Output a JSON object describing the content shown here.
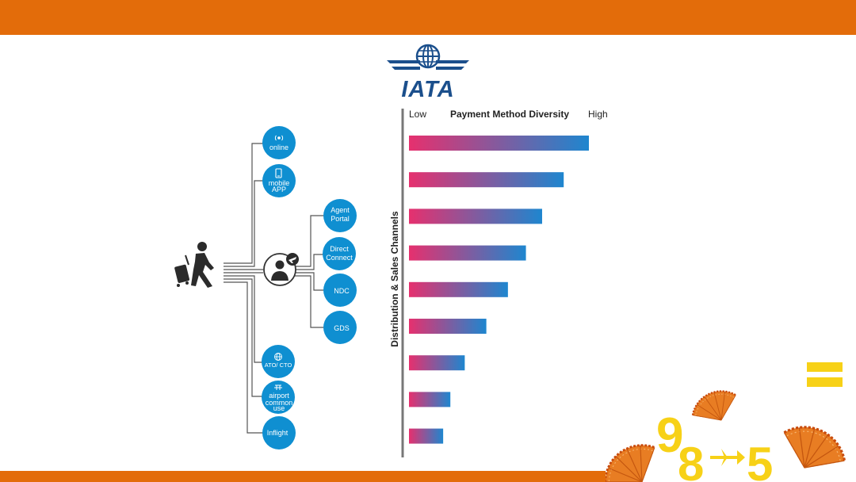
{
  "logo": {
    "text": "IATA",
    "icon": "globe-wings-icon",
    "color": "#1b4f8c"
  },
  "colors": {
    "accent": "#e36c0a",
    "bubble": "#0f8fd1",
    "bar_start": "#e6306e",
    "bar_end": "#1e86cf",
    "yellow": "#f7d117"
  },
  "channels": {
    "direct": [
      {
        "label": [
          "online"
        ],
        "icon": "broadcast-icon"
      },
      {
        "label": [
          "mobile",
          "APP"
        ],
        "icon": "phone-icon"
      }
    ],
    "agent_icon": "agent-plane-icon",
    "traveller_icon": "traveller-luggage-icon",
    "indirect": [
      {
        "label": [
          "Agent",
          "Portal"
        ]
      },
      {
        "label": [
          "Direct",
          "Connect"
        ]
      },
      {
        "label": [
          "NDC"
        ]
      },
      {
        "label": [
          "GDS"
        ]
      }
    ],
    "other": [
      {
        "label": [
          "ATO/ CTO"
        ],
        "icon": "globe-icon"
      },
      {
        "label": [
          "airport",
          "common",
          "use"
        ],
        "icon": "airport-icon"
      },
      {
        "label": [
          "Inflight"
        ]
      }
    ]
  },
  "chart_data": {
    "type": "bar",
    "orientation": "horizontal",
    "title": "Payment Method Diversity",
    "scale_low": "Low",
    "scale_high": "High",
    "ylabel": "Distribution & Sales Channels",
    "values": [
      100,
      86,
      74,
      65,
      55,
      43,
      31,
      23,
      19
    ],
    "xlim": [
      0,
      100
    ],
    "grid": false
  },
  "decoration": {
    "digits": [
      "9",
      "8",
      "5"
    ],
    "arrow": "plane-arrow-icon",
    "equals": "equals-icon",
    "fan_icon": "hand-fan-icon"
  }
}
